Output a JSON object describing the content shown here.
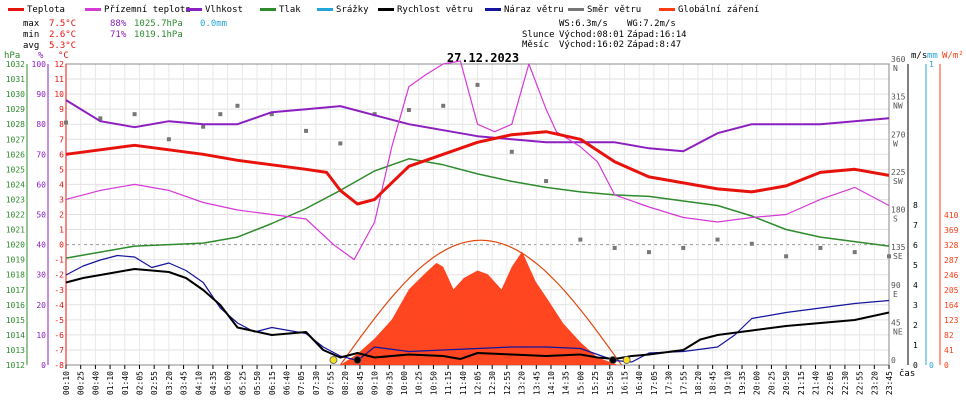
{
  "chart_data": {
    "type": "line",
    "title": "27.12.2023",
    "legend": [
      {
        "label": "Teplota",
        "color": "#e8120c"
      },
      {
        "label": "Přízemní teplota",
        "color": "#d63ad6"
      },
      {
        "label": "Vlhkost",
        "color": "#8c1fbf"
      },
      {
        "label": "Tlak",
        "color": "#2e8b2e"
      },
      {
        "label": "Srážky",
        "color": "#25a6d8"
      },
      {
        "label": "Rychlost větru",
        "color": "#000000"
      },
      {
        "label": "Náraz větru",
        "color": "#14149c"
      },
      {
        "label": "Směr větru",
        "color": "#777777"
      },
      {
        "label": "Globální záření",
        "color": "#ff3c14"
      }
    ],
    "stats": {
      "max": {
        "label": "max",
        "temp": "7.5°C",
        "hum": "88%",
        "press": "1025.7hPa",
        "rain": "0.0mm"
      },
      "min": {
        "label": "min",
        "temp": "2.6°C",
        "hum": "71%",
        "press": "1019.1hPa"
      },
      "avg": {
        "label": "avg",
        "temp": "5.3°C"
      }
    },
    "info": {
      "ws": "WS:6.3m/s",
      "wg": "WG:7.2m/s",
      "sun_label": "Slunce",
      "sun_rise": "Východ:08:01",
      "sun_set": "Západ:16:14",
      "moon_label": "Měsíc",
      "moon_rise": "Východ:16:02",
      "moon_set": "Západ:8:47"
    },
    "axis_units": {
      "hpa": "hPa",
      "pct": "%",
      "degc": "°C",
      "ms": "m/s",
      "mm": "mm",
      "wm2": "W/m²",
      "time": "čas"
    },
    "y_left": {
      "hpa": [
        "1032",
        "1031",
        "1030",
        "1029",
        "1028",
        "1027",
        "1026",
        "1025",
        "1024",
        "1023",
        "1022",
        "1021",
        "1020",
        "1019",
        "1018",
        "1017",
        "1016",
        "1015",
        "1014",
        "1013",
        "1012"
      ],
      "pct": [
        "100",
        "",
        "90",
        "",
        "80",
        "",
        "70",
        "",
        "60",
        "",
        "50",
        "",
        "40",
        "",
        "30",
        "",
        "20",
        "",
        "10",
        "",
        "0"
      ],
      "degc": [
        "12",
        "11",
        "10",
        "9",
        "8",
        "7",
        "6",
        "5",
        "4",
        "3",
        "2",
        "1",
        "0",
        "-1",
        "-2",
        "-3",
        "-4",
        "-5",
        "-6",
        "-7",
        "-8"
      ]
    },
    "y_right": {
      "dir": [
        {
          "deg": "360",
          "cd": "N",
          "at": 1.0
        },
        {
          "deg": "315",
          "cd": "NW",
          "at": 0.875
        },
        {
          "deg": "270",
          "cd": "W",
          "at": 0.75
        },
        {
          "deg": "225",
          "cd": "SW",
          "at": 0.625
        },
        {
          "deg": "180",
          "cd": "S",
          "at": 0.5
        },
        {
          "deg": "135",
          "cd": "SE",
          "at": 0.375
        },
        {
          "deg": "90",
          "cd": "E",
          "at": 0.25
        },
        {
          "deg": "45",
          "cd": "NE",
          "at": 0.125
        },
        {
          "deg": "0",
          "cd": "",
          "at": 0.0
        }
      ],
      "ms": [
        "8",
        "7",
        "6",
        "5",
        "4",
        "3",
        "2",
        "1",
        "0"
      ],
      "mm": [
        "1",
        "0"
      ],
      "wm2": [
        "410",
        "369",
        "328",
        "287",
        "246",
        "205",
        "164",
        "123",
        "82",
        "41",
        "0"
      ]
    },
    "x_ticks": [
      "00:10",
      "00:25",
      "00:40",
      "01:10",
      "01:40",
      "02:05",
      "02:55",
      "03:20",
      "03:45",
      "04:10",
      "04:35",
      "05:00",
      "05:25",
      "05:50",
      "06:15",
      "06:40",
      "07:05",
      "07:30",
      "07:55",
      "08:20",
      "08:45",
      "09:10",
      "09:35",
      "10:00",
      "10:25",
      "10:50",
      "11:15",
      "11:40",
      "12:05",
      "12:30",
      "12:55",
      "13:20",
      "13:45",
      "14:10",
      "14:35",
      "15:00",
      "15:25",
      "15:50",
      "16:15",
      "16:40",
      "17:05",
      "17:30",
      "17:55",
      "18:20",
      "18:45",
      "19:10",
      "19:35",
      "20:00",
      "20:25",
      "20:50",
      "21:15",
      "21:40",
      "22:05",
      "22:30",
      "22:55",
      "23:20",
      "23:45"
    ],
    "series": [
      {
        "name": "Teplota",
        "unit": "°C",
        "x": [
          0,
          1,
          2,
          3,
          4,
          5,
          6,
          7,
          7.6,
          8,
          8.5,
          9,
          10,
          11,
          12,
          13,
          14,
          15,
          16,
          17,
          18,
          19,
          20,
          21,
          22,
          23,
          24
        ],
        "y": [
          6.0,
          6.3,
          6.6,
          6.3,
          6.0,
          5.6,
          5.3,
          5.0,
          4.8,
          3.6,
          2.7,
          3.0,
          5.2,
          6.0,
          6.8,
          7.3,
          7.5,
          7.0,
          5.5,
          4.5,
          4.1,
          3.7,
          3.5,
          3.9,
          4.8,
          5.0,
          4.6
        ]
      },
      {
        "name": "Přízemní teplota",
        "unit": "°C",
        "x": [
          0,
          1,
          2,
          3,
          4,
          5,
          6,
          7,
          7.8,
          8.4,
          9,
          9.5,
          10,
          10.5,
          11,
          11.5,
          12,
          12.5,
          13,
          13.5,
          14,
          14.3,
          15,
          15.5,
          16,
          17,
          18,
          19,
          20,
          21,
          22,
          23,
          24
        ],
        "y": [
          3.0,
          3.6,
          4.0,
          3.6,
          2.8,
          2.3,
          2.0,
          1.7,
          0,
          -1,
          1.5,
          6.5,
          10.5,
          11.3,
          12.0,
          12.2,
          8.0,
          7.5,
          8.0,
          12.0,
          9.0,
          7.5,
          6.5,
          5.5,
          3.3,
          2.5,
          1.8,
          1.5,
          1.8,
          2.0,
          3.0,
          3.8,
          2.6
        ]
      },
      {
        "name": "Vlhkost",
        "unit": "%",
        "x": [
          0,
          1,
          2,
          3,
          4,
          5,
          6,
          7,
          8,
          9,
          10,
          11,
          12,
          13,
          14,
          15,
          16,
          17,
          18,
          19,
          20,
          21,
          22,
          23,
          24
        ],
        "y": [
          88,
          81,
          79,
          81,
          80,
          80,
          84,
          85,
          86,
          83,
          80,
          78,
          76,
          75,
          74,
          74,
          74,
          72,
          71,
          77,
          80,
          80,
          80,
          81,
          82
        ]
      },
      {
        "name": "Tlak",
        "unit": "hPa",
        "x": [
          0,
          1,
          2,
          3,
          4,
          5,
          6,
          7,
          8,
          9,
          10,
          11,
          12,
          13,
          14,
          15,
          16,
          17,
          18,
          19,
          20,
          21,
          22,
          23,
          24
        ],
        "y": [
          1019.1,
          1019.5,
          1019.9,
          1020.0,
          1020.1,
          1020.5,
          1021.4,
          1022.4,
          1023.6,
          1024.9,
          1025.7,
          1025.3,
          1024.7,
          1024.2,
          1023.8,
          1023.5,
          1023.3,
          1023.2,
          1022.9,
          1022.6,
          1021.9,
          1021.0,
          1020.5,
          1020.2,
          1019.9
        ]
      },
      {
        "name": "Rychlost větru",
        "unit": "m/s",
        "x": [
          0,
          0.5,
          1,
          1.5,
          2,
          3,
          3.5,
          4,
          4.5,
          5,
          6,
          7,
          7.5,
          8,
          8.5,
          9,
          10,
          11,
          11.5,
          12,
          13,
          14,
          15,
          15.5,
          16,
          16.5,
          17,
          18,
          18.5,
          19,
          20,
          21,
          22,
          23,
          24
        ],
        "y": [
          5.5,
          5.8,
          6.0,
          6.2,
          6.4,
          6.2,
          5.8,
          5.0,
          4.0,
          2.5,
          2.0,
          2.2,
          1.0,
          0.5,
          0.8,
          0.5,
          0.7,
          0.6,
          0.4,
          0.8,
          0.7,
          0.6,
          0.7,
          0.5,
          0.4,
          0.6,
          0.7,
          1.0,
          1.7,
          2.0,
          2.3,
          2.6,
          2.8,
          3.0,
          3.5
        ]
      },
      {
        "name": "Náraz větru",
        "unit": "m/s",
        "x": [
          0,
          0.5,
          1,
          1.5,
          2,
          2.5,
          3,
          3.5,
          4,
          4.5,
          5,
          5.5,
          6,
          6.5,
          7,
          7.5,
          8,
          8.5,
          9,
          10,
          11,
          12,
          13,
          14,
          15,
          16,
          16.5,
          17,
          18,
          19,
          19.5,
          20,
          21,
          22,
          23,
          24
        ],
        "y": [
          6.0,
          6.6,
          7.0,
          7.3,
          7.2,
          6.5,
          6.8,
          6.3,
          5.5,
          3.8,
          2.8,
          2.2,
          2.5,
          2.3,
          2.1,
          1.2,
          0.6,
          0.3,
          1.2,
          0.9,
          1.0,
          1.1,
          1.2,
          1.2,
          1.1,
          0.3,
          0.2,
          0.8,
          0.9,
          1.2,
          2.0,
          3.1,
          3.5,
          3.8,
          4.1,
          4.3
        ]
      },
      {
        "name": "Globální záření",
        "unit": "W/m²",
        "x": [
          8.0,
          8.5,
          9.0,
          9.5,
          10.0,
          10.5,
          10.8,
          11.0,
          11.3,
          11.6,
          12.0,
          12.3,
          12.7,
          13.0,
          13.3,
          13.7,
          14.0,
          14.5,
          15.0,
          15.5,
          16.1
        ],
        "y": [
          0,
          30,
          70,
          120,
          200,
          245,
          270,
          260,
          200,
          230,
          250,
          240,
          200,
          260,
          300,
          220,
          180,
          110,
          60,
          20,
          0
        ]
      },
      {
        "name": "Směr větru",
        "unit": "°",
        "x": [
          0,
          1,
          2,
          3,
          4,
          4.5,
          5,
          6,
          7,
          8,
          9,
          10,
          11,
          12,
          13,
          14,
          15,
          16,
          17,
          18,
          19,
          20,
          21,
          22,
          23,
          24
        ],
        "y": [
          290,
          295,
          300,
          270,
          285,
          300,
          310,
          300,
          280,
          265,
          300,
          305,
          310,
          335,
          255,
          220,
          150,
          140,
          135,
          140,
          150,
          145,
          130,
          140,
          135,
          130
        ]
      }
    ]
  }
}
